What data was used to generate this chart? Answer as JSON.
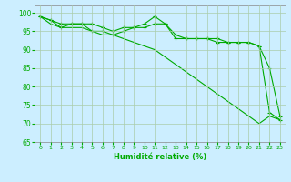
{
  "xlabel": "Humidité relative (%)",
  "ylabel": "",
  "background_color": "#cceeff",
  "grid_color": "#aaccaa",
  "line_color": "#00aa00",
  "xlim": [
    -0.5,
    23.5
  ],
  "ylim": [
    65,
    102
  ],
  "yticks": [
    65,
    70,
    75,
    80,
    85,
    90,
    95,
    100
  ],
  "xticks": [
    0,
    1,
    2,
    3,
    4,
    5,
    6,
    7,
    8,
    9,
    10,
    11,
    12,
    13,
    14,
    15,
    16,
    17,
    18,
    19,
    20,
    21,
    22,
    23
  ],
  "series1_x": [
    0,
    1,
    2,
    3,
    4,
    5,
    6,
    7,
    8,
    9,
    10,
    11,
    12,
    13,
    14,
    15,
    16,
    17,
    18,
    19,
    20,
    21,
    22,
    23
  ],
  "series1_y": [
    99,
    98,
    97,
    97,
    97,
    97,
    96,
    95,
    96,
    96,
    97,
    99,
    97,
    94,
    93,
    93,
    93,
    93,
    92,
    92,
    92,
    91,
    85,
    72
  ],
  "series2_x": [
    0,
    1,
    2,
    3,
    4,
    5,
    6,
    7,
    8,
    9,
    10,
    11,
    12,
    13,
    14,
    15,
    16,
    17,
    18,
    19,
    20,
    21,
    22,
    23
  ],
  "series2_y": [
    99,
    98,
    96,
    97,
    97,
    95,
    95,
    94,
    95,
    96,
    96,
    97,
    97,
    93,
    93,
    93,
    93,
    92,
    92,
    92,
    92,
    91,
    73,
    71
  ],
  "series3_x": [
    0,
    1,
    2,
    3,
    4,
    5,
    6,
    7,
    8,
    9,
    10,
    11,
    12,
    13,
    14,
    15,
    16,
    17,
    18,
    19,
    20,
    21,
    22,
    23
  ],
  "series3_y": [
    99,
    97,
    96,
    96,
    96,
    95,
    94,
    94,
    93,
    92,
    91,
    90,
    88,
    86,
    84,
    82,
    80,
    78,
    76,
    74,
    72,
    70,
    72,
    71
  ]
}
